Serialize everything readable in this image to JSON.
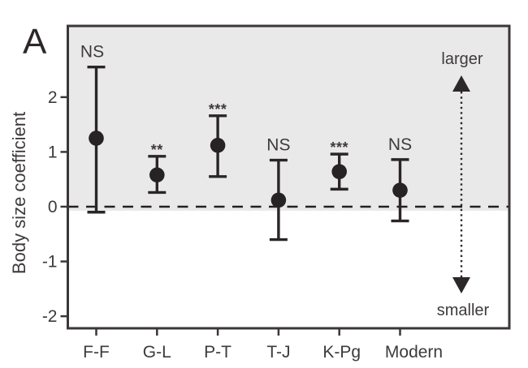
{
  "panel_label": "A",
  "chart_data": {
    "type": "scatter",
    "title": "",
    "xlabel": "",
    "ylabel": "Body size coefficient",
    "categories": [
      "F-F",
      "G-L",
      "P-T",
      "T-J",
      "K-Pg",
      "Modern"
    ],
    "series": [
      {
        "name": "body-size-coefficient",
        "values": [
          1.25,
          0.58,
          1.12,
          0.12,
          0.64,
          0.3
        ],
        "ci_low": [
          -0.1,
          0.26,
          0.55,
          -0.6,
          0.32,
          -0.26
        ],
        "ci_high": [
          2.55,
          0.92,
          1.66,
          0.85,
          0.96,
          0.86
        ]
      }
    ],
    "significance": [
      "NS",
      "**",
      "***",
      "NS",
      "***",
      "NS"
    ],
    "yticks": [
      2,
      1,
      0,
      -1,
      -2
    ],
    "ylim": [
      -2.22,
      3.3
    ],
    "reference_line_y": 0,
    "grid": false,
    "legend": "none",
    "shaded_region": {
      "above_y": 0,
      "color": "#eae9e9"
    },
    "annotations": {
      "up_label": "larger",
      "down_label": "smaller"
    },
    "colors": {
      "marker": "#272223",
      "error_bar": "#2a2526",
      "frame": "#3b3738",
      "text": "#3e3a3b",
      "reference_line": "#232021",
      "arrow": "#2c2728",
      "shade": "#eae9e9",
      "background": "#ffffff"
    }
  }
}
